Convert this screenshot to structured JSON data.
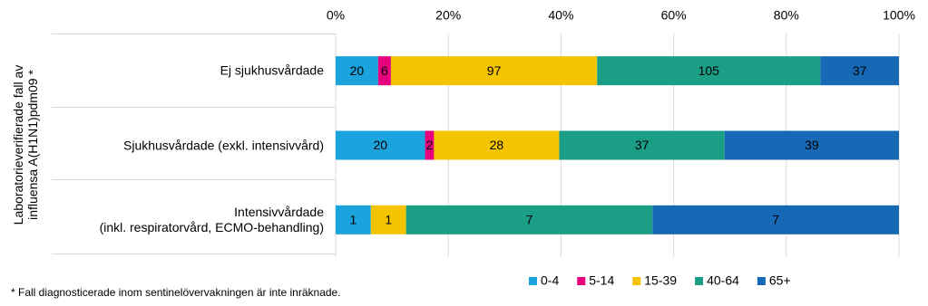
{
  "chart_data": {
    "type": "bar",
    "orientation": "horizontal",
    "stack": "percent",
    "y_label": "Laboratorieverifierade fall av\ninfluensa A(H1N1)pdm09 *",
    "categories": [
      "Ej sjukhusvårdade",
      "Sjukhusvårdade (exkl. intensivvård)",
      "Intensivvårdade\n(inkl. respiratorvård, ECMO-behandling)"
    ],
    "series": [
      {
        "name": "0-4",
        "color": "#1aa3dd",
        "values": [
          20,
          20,
          1
        ]
      },
      {
        "name": "5-14",
        "color": "#e6007e",
        "values": [
          6,
          2,
          0
        ]
      },
      {
        "name": "15-39",
        "color": "#f5c400",
        "values": [
          97,
          28,
          1
        ]
      },
      {
        "name": "40-64",
        "color": "#1a9e85",
        "values": [
          105,
          37,
          7
        ]
      },
      {
        "name": "65+",
        "color": "#1769b5",
        "values": [
          37,
          39,
          7
        ]
      }
    ],
    "xlim": [
      0,
      100
    ],
    "xticks": [
      {
        "value": 0,
        "label": "0%"
      },
      {
        "value": 20,
        "label": "20%"
      },
      {
        "value": 40,
        "label": "40%"
      },
      {
        "value": 60,
        "label": "60%"
      },
      {
        "value": 80,
        "label": "80%"
      },
      {
        "value": 100,
        "label": "100%"
      }
    ],
    "grid": true,
    "legend": "bottom-right",
    "footnote": "* Fall diagnosticerade inom sentinelövervakningen är inte inräknade."
  }
}
